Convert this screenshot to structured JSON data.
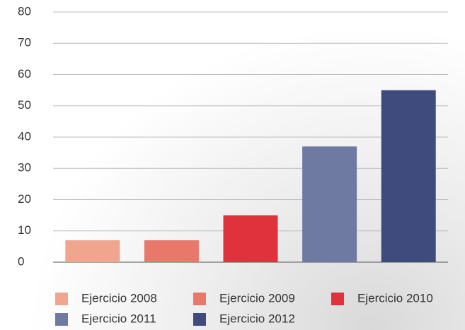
{
  "chart_data": {
    "type": "bar",
    "categories": [
      null,
      null,
      null,
      null,
      null
    ],
    "series": [
      {
        "name": "Ejercicio 2008",
        "color": "#f0a58f",
        "values": [
          7,
          null,
          null,
          null,
          null
        ]
      },
      {
        "name": "Ejercicio 2009",
        "color": "#e8796a",
        "values": [
          null,
          7,
          null,
          null,
          null
        ]
      },
      {
        "name": "Ejercicio 2010",
        "color": "#e0323c",
        "values": [
          null,
          null,
          15,
          null,
          null
        ]
      },
      {
        "name": "Ejercicio 2011",
        "color": "#6f7aa3",
        "values": [
          null,
          null,
          null,
          37,
          null
        ]
      },
      {
        "name": "Ejercicio 2012",
        "color": "#3e4b7c",
        "values": [
          null,
          null,
          null,
          null,
          55
        ]
      }
    ],
    "ylim": [
      0,
      80
    ],
    "yticks": [
      0,
      10,
      20,
      30,
      40,
      50,
      60,
      70,
      80
    ],
    "grid": true
  }
}
